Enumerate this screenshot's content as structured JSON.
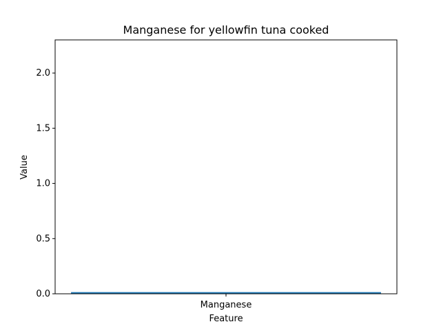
{
  "chart_data": {
    "type": "bar",
    "title": "Manganese for yellowfin tuna cooked",
    "xlabel": "Feature",
    "ylabel": "Value",
    "categories": [
      "Manganese"
    ],
    "values": [
      0.015
    ],
    "ylim": [
      0,
      2.3
    ],
    "yticks": [
      "0.0",
      "0.5",
      "1.0",
      "1.5",
      "2.0"
    ],
    "grid": false,
    "bar_color": "#1f77b4"
  }
}
